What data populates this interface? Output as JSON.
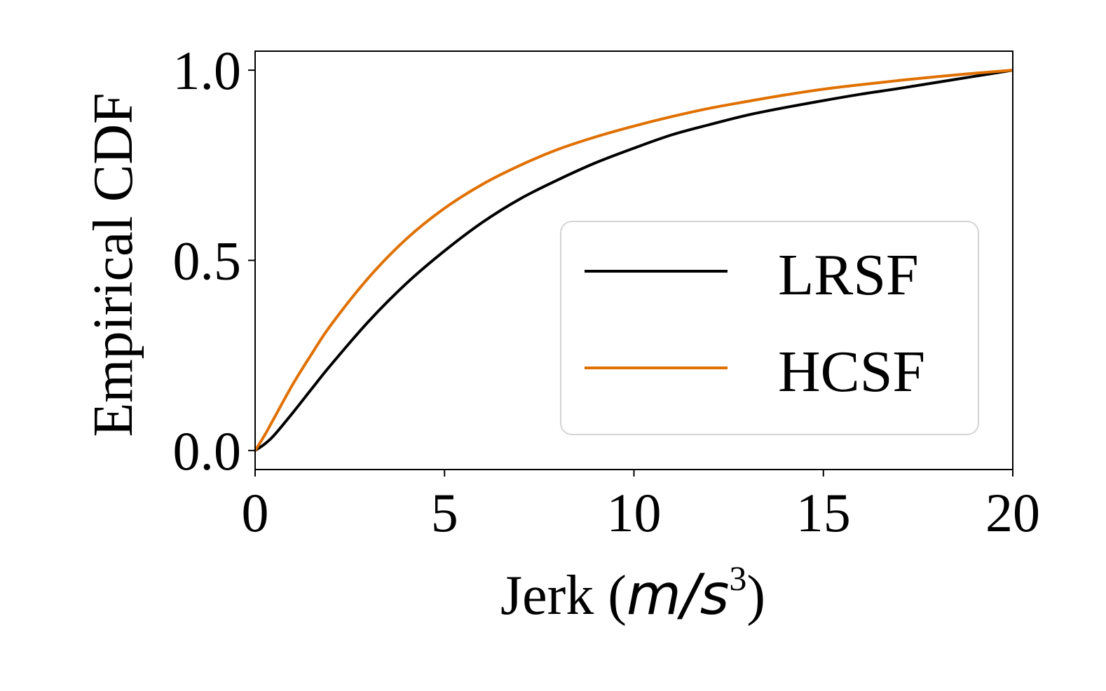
{
  "chart_data": {
    "type": "line",
    "xlabel": "Jerk (",
    "xlabel_math": "m/s",
    "xlabel_sup": "3",
    "xlabel_close": ")",
    "ylabel": "Empirical CDF",
    "xlim": [
      0,
      20
    ],
    "ylim": [
      -0.05,
      1.05
    ],
    "xticks": [
      0,
      5,
      10,
      15,
      20
    ],
    "xtick_labels": [
      "0",
      "5",
      "10",
      "15",
      "20"
    ],
    "yticks": [
      0.0,
      0.5,
      1.0
    ],
    "ytick_labels": [
      "0.0",
      "0.5",
      "1.0"
    ],
    "grid": false,
    "legend_position": "lower-right",
    "series": [
      {
        "name": "LRSF",
        "color": "#000000",
        "x": [
          0,
          0.25,
          0.5,
          1,
          1.5,
          2,
          3,
          4,
          5,
          6,
          7,
          8,
          9,
          10,
          11,
          12,
          13,
          14,
          15,
          16,
          17,
          18,
          19,
          20
        ],
        "y": [
          0.0,
          0.017,
          0.04,
          0.1,
          0.163,
          0.225,
          0.34,
          0.44,
          0.525,
          0.6,
          0.662,
          0.712,
          0.757,
          0.795,
          0.83,
          0.857,
          0.882,
          0.902,
          0.92,
          0.937,
          0.952,
          0.968,
          0.984,
          1.0
        ]
      },
      {
        "name": "HCSF",
        "color": "#e07000",
        "x": [
          0,
          0.25,
          0.5,
          1,
          1.5,
          2,
          3,
          4,
          5,
          6,
          7,
          8,
          9,
          10,
          11,
          12,
          13,
          14,
          15,
          16,
          17,
          18,
          19,
          20
        ],
        "y": [
          0.0,
          0.04,
          0.085,
          0.175,
          0.255,
          0.33,
          0.455,
          0.557,
          0.637,
          0.7,
          0.75,
          0.792,
          0.825,
          0.853,
          0.878,
          0.9,
          0.918,
          0.935,
          0.95,
          0.962,
          0.973,
          0.983,
          0.992,
          1.0
        ]
      }
    ]
  }
}
